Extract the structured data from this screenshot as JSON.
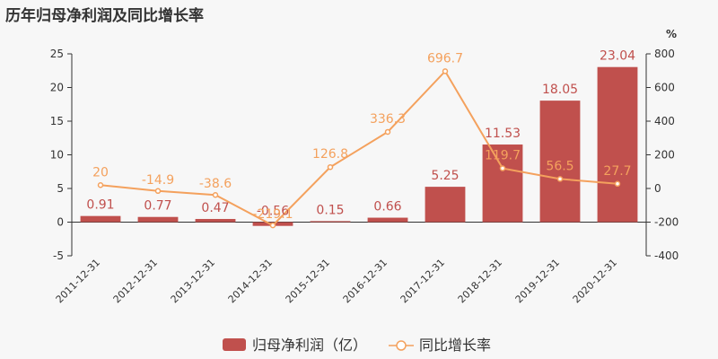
{
  "title": "历年归母净利润及同比增长率",
  "chart_data": {
    "type": "bar",
    "categories": [
      "2011-12-31",
      "2012-12-31",
      "2013-12-31",
      "2014-12-31",
      "2015-12-31",
      "2016-12-31",
      "2017-12-31",
      "2018-12-31",
      "2019-12-31",
      "2020-12-31"
    ],
    "series": [
      {
        "name": "归母净利润（亿）",
        "type": "bar",
        "axis": "left",
        "color": "#c0504d",
        "values": [
          0.91,
          0.77,
          0.47,
          -0.56,
          0.15,
          0.66,
          5.25,
          11.53,
          18.05,
          23.04
        ],
        "labels": [
          "0.91",
          "0.77",
          "0.47",
          "-0.56",
          "0.15",
          "0.66",
          "5.25",
          "11.53",
          "18.05",
          "23.04"
        ]
      },
      {
        "name": "同比增长率",
        "type": "line",
        "axis": "right",
        "color": "#f4a15d",
        "values": [
          20,
          -14.9,
          -38.6,
          -219.1,
          126.8,
          336.3,
          696.7,
          119.7,
          56.5,
          27.7
        ],
        "labels": [
          "20",
          "-14.9",
          "-38.6",
          "-219.1",
          "126.8",
          "336.3",
          "696.7",
          "119.7",
          "56.5",
          "27.7"
        ]
      }
    ],
    "y_left": {
      "min": -5,
      "max": 25,
      "ticks": [
        "-5",
        "0",
        "5",
        "10",
        "15",
        "20",
        "25"
      ]
    },
    "y_right": {
      "min": -400,
      "max": 800,
      "ticks": [
        "-400",
        "-200",
        "0",
        "200",
        "400",
        "600",
        "800"
      ],
      "unit": "%"
    },
    "grid": false,
    "legend": "bottom-center"
  }
}
